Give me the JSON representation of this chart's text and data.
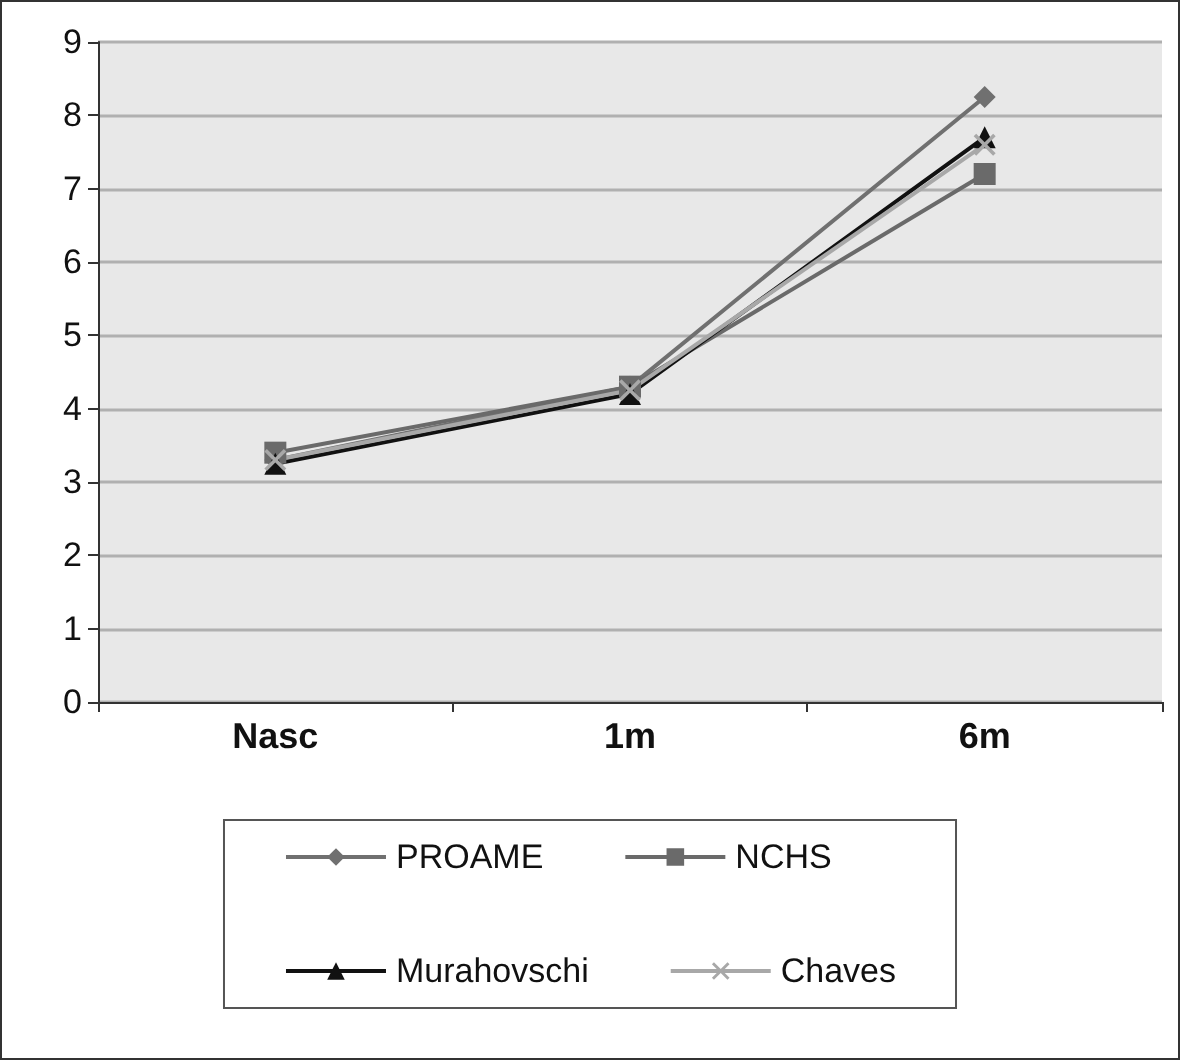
{
  "chart_data": {
    "type": "line",
    "categories": [
      "Nasc",
      "1m",
      "6m"
    ],
    "series": [
      {
        "name": "PROAME",
        "color": "#707070",
        "marker": "diamond",
        "values": [
          3.3,
          4.3,
          8.25
        ]
      },
      {
        "name": "NCHS",
        "color": "#6a6a6a",
        "marker": "square",
        "values": [
          3.4,
          4.3,
          7.2
        ]
      },
      {
        "name": "Murahovschi",
        "color": "#111111",
        "marker": "triangle",
        "values": [
          3.25,
          4.2,
          7.7
        ]
      },
      {
        "name": "Chaves",
        "color": "#a8a8a8",
        "marker": "cross",
        "values": [
          3.3,
          4.25,
          7.6
        ]
      }
    ],
    "ylim": [
      0,
      9
    ],
    "yticks": [
      0,
      1,
      2,
      3,
      4,
      5,
      6,
      7,
      8,
      9
    ],
    "grid": "y",
    "legend": "bottom"
  }
}
